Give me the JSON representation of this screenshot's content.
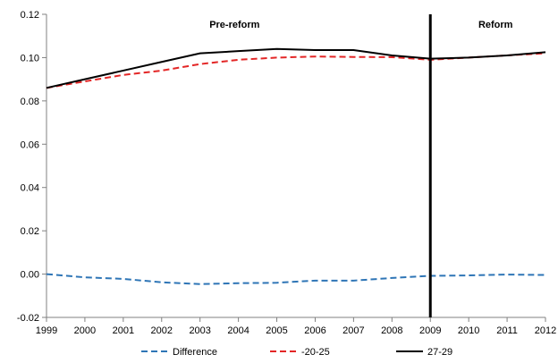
{
  "chart_data": {
    "type": "line",
    "title": "",
    "xlabel": "",
    "ylabel": "",
    "x": [
      1999,
      2000,
      2001,
      2002,
      2003,
      2004,
      2005,
      2006,
      2007,
      2008,
      2009,
      2010,
      2011,
      2012
    ],
    "xlim": [
      1999,
      2012
    ],
    "ylim": [
      -0.02,
      0.12
    ],
    "y_ticks": [
      -0.02,
      0.0,
      0.02,
      0.04,
      0.06,
      0.08,
      0.1,
      0.12
    ],
    "y_tick_labels": [
      "-0.02",
      "0.00",
      "0.02",
      "0.04",
      "0.06",
      "0.08",
      "0.10",
      "0.12"
    ],
    "x_tick_labels": [
      "1999",
      "2000",
      "2001",
      "2002",
      "2003",
      "2004",
      "2005",
      "2006",
      "2007",
      "2008",
      "2009",
      "2010",
      "2011",
      "2012"
    ],
    "grid": false,
    "legend_position": "bottom",
    "series": [
      {
        "name": "Difference",
        "color": "#2e75b6",
        "dash": "dashed",
        "values": [
          0.0,
          -0.0015,
          -0.0022,
          -0.0038,
          -0.0046,
          -0.0042,
          -0.004,
          -0.003,
          -0.003,
          -0.0018,
          -0.0008,
          -0.0006,
          -0.0002,
          -0.0004
        ]
      },
      {
        "name": "-20-25",
        "color": "#e32626",
        "dash": "dashed",
        "values": [
          0.086,
          0.089,
          0.092,
          0.094,
          0.097,
          0.099,
          0.1,
          0.1005,
          0.1003,
          0.1002,
          0.099,
          0.1,
          0.101,
          0.102
        ]
      },
      {
        "name": "27-29",
        "color": "#000000",
        "dash": "solid",
        "values": [
          0.086,
          0.09,
          0.094,
          0.098,
          0.102,
          0.103,
          0.104,
          0.1035,
          0.1035,
          0.101,
          0.0995,
          0.1,
          0.101,
          0.1025
        ]
      }
    ],
    "divider_x": 2009,
    "annotations": [
      {
        "text": "Pre-reform",
        "x": 2003.9
      },
      {
        "text": "Reform",
        "x": 2010.7
      }
    ]
  }
}
